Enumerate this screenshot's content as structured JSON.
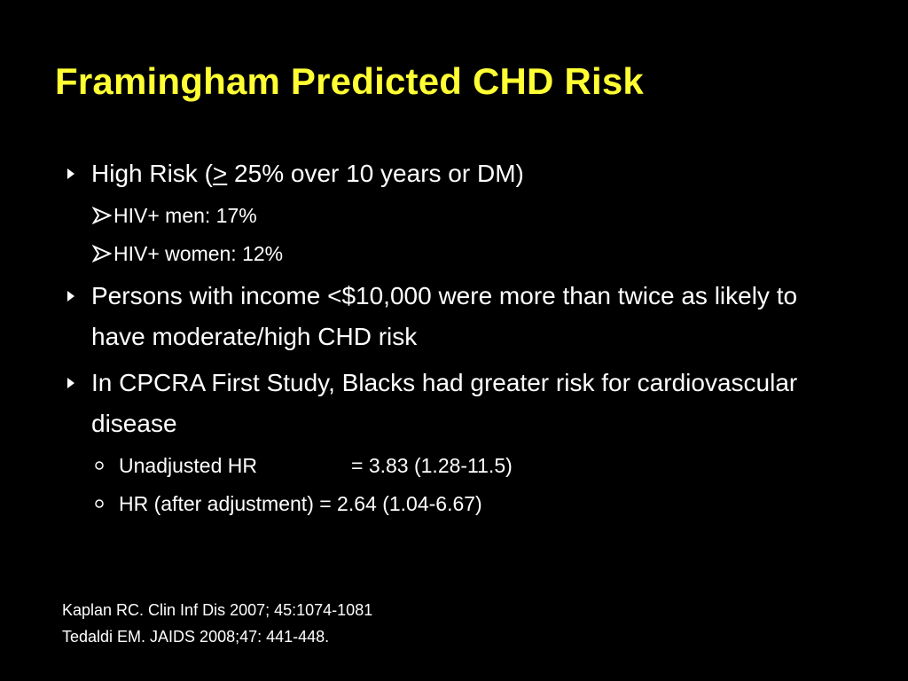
{
  "slide": {
    "title": "Framingham Predicted CHD Risk",
    "colors": {
      "title": "#ffff33",
      "text": "#ffffff",
      "background": "#000000"
    },
    "bullets": {
      "high_risk": {
        "prefix": "High Risk (",
        "underlined": ">",
        "suffix": " 25% over 10 years or DM)",
        "sub": {
          "men": "HIV+ men: 17%",
          "women": "HIV+ women: 12%"
        }
      },
      "income": "Persons with income <$10,000 were more than twice as likely to have moderate/high CHD risk",
      "cpcra": {
        "text": "In CPCRA First Study, Blacks had greater risk for cardiovascular disease",
        "sub": {
          "unadjusted_label": "Unadjusted HR",
          "unadjusted_value": "= 3.83 (1.28-11.5)",
          "adjusted": "HR (after adjustment) = 2.64 (1.04-6.67)"
        }
      }
    },
    "references": [
      "Kaplan RC. Clin Inf Dis 2007; 45:1074-1081",
      "Tedaldi EM. JAIDS 2008;47: 441-448."
    ]
  }
}
